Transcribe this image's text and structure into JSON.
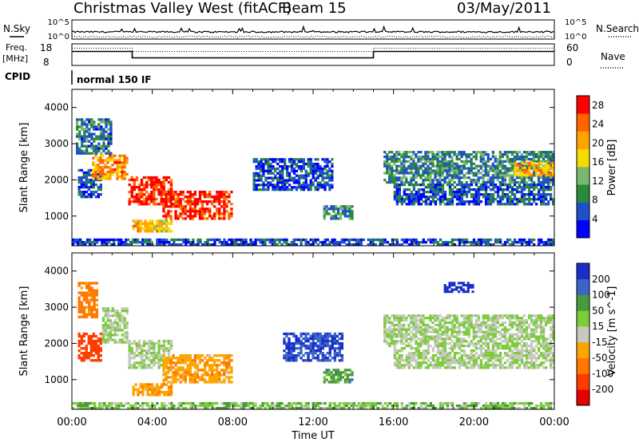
{
  "header": {
    "title": "Christmas Valley West (fitACF)",
    "beam": "Beam 15",
    "date": "03/May/2011"
  },
  "noise_panel": {
    "left_label": "N.Sky",
    "right_label": "N.Search",
    "left_ticks": [
      "10^5",
      "10^0"
    ],
    "right_ticks": [
      "10^5",
      "10^0"
    ]
  },
  "freq_panel": {
    "left_label_line1": "Freq.",
    "left_label_line2": "[MHz]",
    "right_label": "Nave",
    "left_ticks": [
      "18",
      "8"
    ],
    "right_ticks": [
      "60",
      "0"
    ]
  },
  "cpid_panel": {
    "label": "CPID",
    "mode": "normal 150 IF"
  },
  "time_axis": {
    "label": "Time UT",
    "ticks": [
      "00:00",
      "04:00",
      "08:00",
      "12:00",
      "16:00",
      "20:00",
      "00:00"
    ]
  },
  "chart_data": [
    {
      "type": "line",
      "panel": "noise",
      "series": [
        {
          "name": "N.Sky",
          "style": "solid"
        },
        {
          "name": "N.Search",
          "style": "dotted"
        }
      ],
      "ylim": [
        "10^0",
        "10^5"
      ],
      "ylog": true
    },
    {
      "type": "line",
      "panel": "frequency",
      "x": [
        "00:00",
        "03:00",
        "03:00",
        "15:00",
        "15:00",
        "24:00"
      ],
      "series": [
        {
          "name": "Freq.",
          "values": [
            14.5,
            14.5,
            11.5,
            11.5,
            14.5,
            14.5
          ]
        },
        {
          "name": "Nave",
          "values": [
            48,
            48,
            39,
            39,
            48,
            48
          ]
        }
      ],
      "ylim": [
        8,
        18
      ],
      "ylim_right": [
        0,
        60
      ]
    },
    {
      "type": "heatmap",
      "panel": "power",
      "ylabel": "Slant Range [km]",
      "xlabel": "Time UT",
      "xlim_hours": [
        0,
        24
      ],
      "ylim": [
        180,
        4500
      ],
      "yticks": [
        1000,
        2000,
        3000,
        4000
      ],
      "colorbar": {
        "label": "Power [dB]",
        "ticks": [
          4,
          8,
          12,
          16,
          20,
          24,
          28
        ],
        "range": [
          0,
          30
        ],
        "colors": [
          "#0000ff",
          "#1e50c8",
          "#2a8a3c",
          "#7ab870",
          "#f5dc00",
          "#ffa500",
          "#ff6400",
          "#ff0000"
        ]
      },
      "regions": [
        {
          "t": [
            0.3,
            1.5
          ],
          "r": [
            1500,
            2300
          ],
          "level": 6
        },
        {
          "t": [
            1.0,
            2.8
          ],
          "r": [
            2000,
            2700
          ],
          "level": 22
        },
        {
          "t": [
            0.2,
            2.0
          ],
          "r": [
            2700,
            3700
          ],
          "level": 8
        },
        {
          "t": [
            2.8,
            5.0
          ],
          "r": [
            1300,
            2100
          ],
          "level": 27
        },
        {
          "t": [
            4.5,
            8.0
          ],
          "r": [
            900,
            1700
          ],
          "level": 27
        },
        {
          "t": [
            3.0,
            5.0
          ],
          "r": [
            550,
            900
          ],
          "level": 18
        },
        {
          "t": [
            9.0,
            13.0
          ],
          "r": [
            1700,
            2600
          ],
          "level": 5
        },
        {
          "t": [
            12.5,
            14.0
          ],
          "r": [
            900,
            1300
          ],
          "level": 10
        },
        {
          "t": [
            16.0,
            24.0
          ],
          "r": [
            1300,
            1900
          ],
          "level": 6
        },
        {
          "t": [
            15.5,
            24.0
          ],
          "r": [
            1900,
            2800
          ],
          "level": 9
        },
        {
          "t": [
            22.0,
            24.0
          ],
          "r": [
            2100,
            2500
          ],
          "level": 20
        },
        {
          "t": [
            0.0,
            24.0
          ],
          "r": [
            180,
            380
          ],
          "level": 5
        }
      ]
    },
    {
      "type": "heatmap",
      "panel": "velocity",
      "ylabel": "Slant Range [km]",
      "xlabel": "Time UT",
      "xlim_hours": [
        0,
        24
      ],
      "ylim": [
        180,
        4500
      ],
      "yticks": [
        1000,
        2000,
        3000,
        4000
      ],
      "colorbar": {
        "label": "Velocity [m s^-1]",
        "ticks": [
          200,
          100,
          50,
          15,
          -15,
          -50,
          -100,
          -200
        ],
        "colors": [
          "#1a2ec8",
          "#3c64c8",
          "#4a9a3c",
          "#7ccc3c",
          "#c8c8c0",
          "#ffa500",
          "#ff7800",
          "#ff3c00",
          "#e60000"
        ]
      },
      "regions": [
        {
          "t": [
            0.3,
            1.5
          ],
          "r": [
            1500,
            2300
          ],
          "v": -200
        },
        {
          "t": [
            1.5,
            2.8
          ],
          "r": [
            2000,
            3000
          ],
          "v": 0
        },
        {
          "t": [
            0.3,
            1.3
          ],
          "r": [
            2700,
            3700
          ],
          "v": -100
        },
        {
          "t": [
            2.8,
            5.0
          ],
          "r": [
            1300,
            2100
          ],
          "v": 0
        },
        {
          "t": [
            4.5,
            8.0
          ],
          "r": [
            900,
            1700
          ],
          "v": -60
        },
        {
          "t": [
            3.0,
            5.0
          ],
          "r": [
            550,
            900
          ],
          "v": -60
        },
        {
          "t": [
            10.5,
            13.5
          ],
          "r": [
            1500,
            2300
          ],
          "v": 150
        },
        {
          "t": [
            12.5,
            14.0
          ],
          "r": [
            900,
            1300
          ],
          "v": 50
        },
        {
          "t": [
            16.0,
            24.0
          ],
          "r": [
            1300,
            1900
          ],
          "v": 0
        },
        {
          "t": [
            15.5,
            24.0
          ],
          "r": [
            1900,
            2800
          ],
          "v": 0
        },
        {
          "t": [
            18.5,
            20.0
          ],
          "r": [
            3400,
            3700
          ],
          "v": 200
        },
        {
          "t": [
            0.0,
            24.0
          ],
          "r": [
            180,
            380
          ],
          "v": 20
        }
      ]
    }
  ]
}
